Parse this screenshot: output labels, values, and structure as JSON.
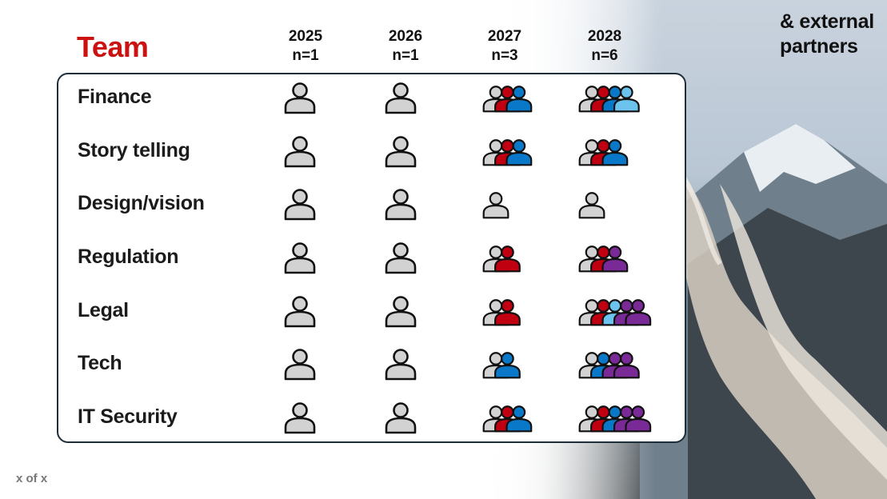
{
  "slide": {
    "title": "Team",
    "side_note": "& external partners",
    "footer": "x of x"
  },
  "years": [
    {
      "year": "2025",
      "n": "n=1"
    },
    {
      "year": "2026",
      "n": "n=1"
    },
    {
      "year": "2027",
      "n": "n=3"
    },
    {
      "year": "2028",
      "n": "n=6"
    }
  ],
  "colors": {
    "title": "#cc1111",
    "grey": "#d2d2d2",
    "red": "#c00010",
    "blue": "#0a78c8",
    "lightblue": "#6cc4ee",
    "purple": "#7a2a96"
  },
  "rows": [
    {
      "label": "Finance",
      "cells": [
        [
          "grey"
        ],
        [
          "grey"
        ],
        [
          "grey",
          "red",
          "blue"
        ],
        [
          "grey",
          "red",
          "blue",
          "lightblue"
        ]
      ]
    },
    {
      "label": "Story telling",
      "cells": [
        [
          "grey"
        ],
        [
          "grey"
        ],
        [
          "grey",
          "red",
          "blue"
        ],
        [
          "grey",
          "red",
          "blue"
        ]
      ]
    },
    {
      "label": "Design/vision",
      "cells": [
        [
          "grey"
        ],
        [
          "grey"
        ],
        [
          "grey"
        ],
        [
          "grey"
        ]
      ]
    },
    {
      "label": "Regulation",
      "cells": [
        [
          "grey"
        ],
        [
          "grey"
        ],
        [
          "grey",
          "red"
        ],
        [
          "grey",
          "red",
          "purple"
        ]
      ]
    },
    {
      "label": "Legal",
      "cells": [
        [
          "grey"
        ],
        [
          "grey"
        ],
        [
          "grey",
          "red"
        ],
        [
          "grey",
          "red",
          "lightblue",
          "purple",
          "purple"
        ]
      ]
    },
    {
      "label": "Tech",
      "cells": [
        [
          "grey"
        ],
        [
          "grey"
        ],
        [
          "grey",
          "blue"
        ],
        [
          "grey",
          "blue",
          "purple",
          "purple"
        ]
      ]
    },
    {
      "label": "IT Security",
      "cells": [
        [
          "grey"
        ],
        [
          "grey"
        ],
        [
          "grey",
          "red",
          "blue"
        ],
        [
          "grey",
          "red",
          "blue",
          "purple",
          "purple"
        ]
      ]
    }
  ]
}
